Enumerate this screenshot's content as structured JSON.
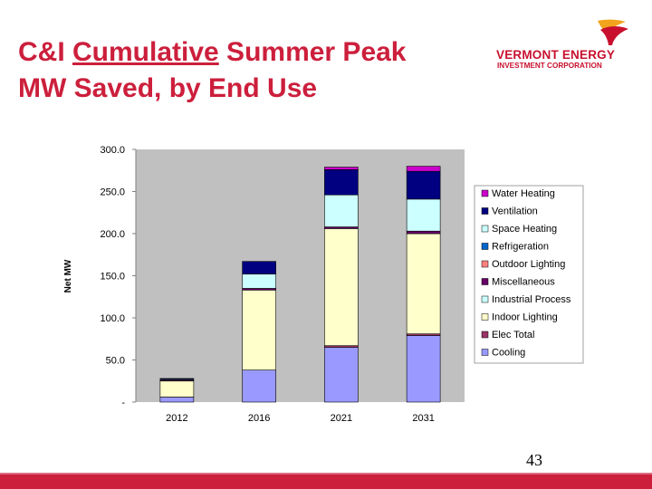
{
  "title": {
    "part1": "C&I ",
    "underlined": "Cumulative",
    "part2": " Summer Peak",
    "line2": "MW Saved, by End Use"
  },
  "logo": {
    "line1": "VERMONT ENERGY",
    "line2": "INVESTMENT CORPORATION",
    "color": "#c8102e",
    "accent": "#f2a41c"
  },
  "page_number": "43",
  "colors": {
    "title": "#cc1f3c",
    "footer": "#cc1f3c",
    "plot_bg": "#c0c0c0"
  },
  "chart_data": {
    "type": "bar",
    "stacked": true,
    "title": "",
    "xlabel": "",
    "ylabel": "Net MW",
    "ylim": [
      0,
      300
    ],
    "yticks": [
      0,
      50,
      100,
      150,
      200,
      250,
      300
    ],
    "ytick_labels": [
      "-",
      "50.0",
      "100.0",
      "150.0",
      "200.0",
      "250.0",
      "300.0"
    ],
    "categories": [
      "2012",
      "2016",
      "2021",
      "2031"
    ],
    "legend_position": "right",
    "series": [
      {
        "name": "Cooling",
        "color": "#9999ff",
        "values": [
          6,
          38,
          65,
          79
        ]
      },
      {
        "name": "Elec Total",
        "color": "#993366",
        "values": [
          0,
          0,
          2,
          2
        ]
      },
      {
        "name": "Indoor Lighting",
        "color": "#ffffcc",
        "values": [
          19,
          95,
          139,
          119
        ]
      },
      {
        "name": "Industrial Process",
        "color": "#ccffff",
        "values": [
          0,
          0,
          0,
          0
        ]
      },
      {
        "name": "Miscellaneous",
        "color": "#660066",
        "values": [
          1,
          2,
          2,
          3
        ]
      },
      {
        "name": "Outdoor Lighting",
        "color": "#ff8080",
        "values": [
          0,
          0,
          0,
          0
        ]
      },
      {
        "name": "Refrigeration",
        "color": "#0066cc",
        "values": [
          0,
          0,
          0,
          0
        ]
      },
      {
        "name": "Space Heating",
        "color": "#ccffff",
        "values": [
          1,
          17,
          38,
          38
        ]
      },
      {
        "name": "Ventilation",
        "color": "#000080",
        "values": [
          1,
          15,
          30,
          33
        ]
      },
      {
        "name": "Water Heating",
        "color": "#cc00cc",
        "values": [
          0,
          0,
          3,
          6
        ]
      }
    ],
    "legend_order": [
      "Water Heating",
      "Ventilation",
      "Space Heating",
      "Refrigeration",
      "Outdoor Lighting",
      "Miscellaneous",
      "Industrial Process",
      "Indoor Lighting",
      "Elec Total",
      "Cooling"
    ]
  }
}
